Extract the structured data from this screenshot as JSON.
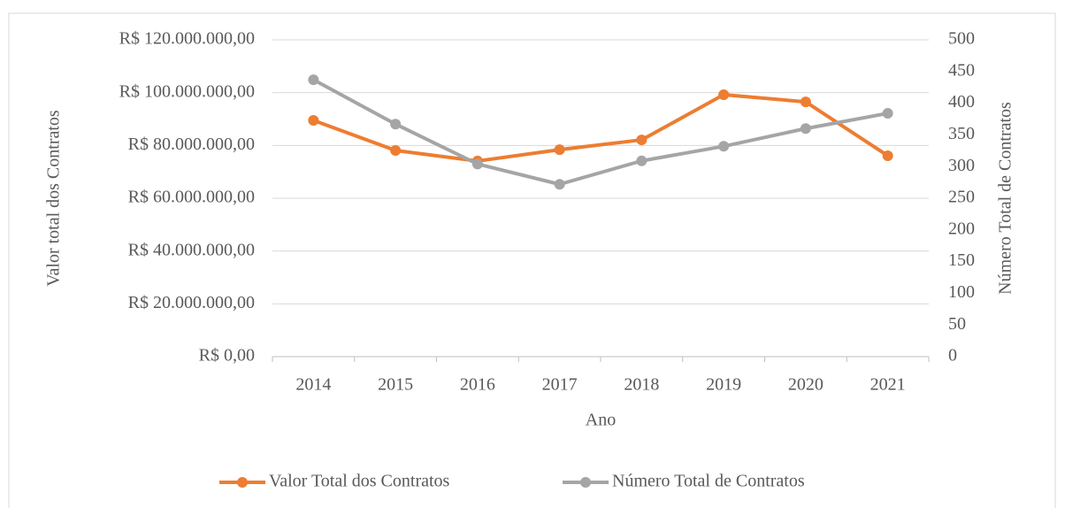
{
  "chart_data": {
    "type": "line",
    "categories": [
      "2014",
      "2015",
      "2016",
      "2017",
      "2018",
      "2019",
      "2020",
      "2021"
    ],
    "series": [
      {
        "name": "Valor Total dos Contratos",
        "color": "#ed7d31",
        "axis": "y",
        "values": [
          89500000,
          78100000,
          74100000,
          78400000,
          82100000,
          99200000,
          96500000,
          76100000
        ]
      },
      {
        "name": "Número Total de Contratos",
        "color": "#a5a5a5",
        "axis": "y2",
        "values": [
          437,
          367,
          304,
          272,
          309,
          332,
          360,
          384
        ]
      }
    ],
    "x_label": "Ano",
    "y_label": "Valor total dos Contratos",
    "y2_label": "Número Total de Contratos",
    "ylim": [
      0,
      120000000
    ],
    "yticks": [
      {
        "value": 0,
        "label": "R$ 0,00"
      },
      {
        "value": 20000000,
        "label": "R$ 20.000.000,00"
      },
      {
        "value": 40000000,
        "label": "R$ 40.000.000,00"
      },
      {
        "value": 60000000,
        "label": "R$ 60.000.000,00"
      },
      {
        "value": 80000000,
        "label": "R$ 80.000.000,00"
      },
      {
        "value": 100000000,
        "label": "R$ 100.000.000,00"
      },
      {
        "value": 120000000,
        "label": "R$ 120.000.000,00"
      }
    ],
    "y2lim": [
      0,
      500
    ],
    "y2ticks": [
      0,
      50,
      100,
      150,
      200,
      250,
      300,
      350,
      400,
      450,
      500
    ],
    "grid": true,
    "legend": "bottom"
  }
}
